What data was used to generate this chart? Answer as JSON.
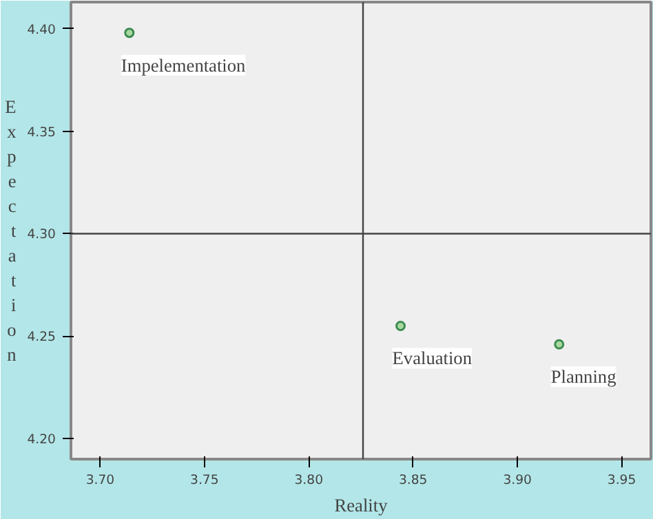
{
  "chart_data": {
    "type": "scatter",
    "xlabel": "Reality",
    "ylabel": "Expectation",
    "x": [
      3.714,
      3.844,
      3.92
    ],
    "series": [
      {
        "color": "#3c8c50",
        "values": [
          4.398,
          4.255,
          4.246
        ]
      }
    ],
    "marker": "circle",
    "grid": false,
    "xlim": [
      3.686,
      3.964
    ],
    "ylim": [
      4.19,
      4.413
    ],
    "xticks": [
      {
        "value": 3.7,
        "label": "3.70"
      },
      {
        "value": 3.75,
        "label": "3.75"
      },
      {
        "value": 3.8,
        "label": "3.80"
      },
      {
        "value": 3.85,
        "label": "3.85"
      },
      {
        "value": 3.9,
        "label": "3.90"
      },
      {
        "value": 3.95,
        "label": "3.95"
      }
    ],
    "yticks": [
      {
        "value": 4.2,
        "label": "4.20"
      },
      {
        "value": 4.25,
        "label": "4.25"
      },
      {
        "value": 4.3,
        "label": "4.30"
      },
      {
        "value": 4.35,
        "label": "4.35"
      },
      {
        "value": 4.4,
        "label": "4.40"
      }
    ],
    "ref_lines": [
      {
        "axis": "x",
        "value": 3.826
      },
      {
        "axis": "y",
        "value": 4.3
      }
    ],
    "annotations": [
      {
        "text": "Impelementation",
        "x": 3.714,
        "y": 4.398
      },
      {
        "text": "Evaluation",
        "x": 3.844,
        "y": 4.255
      },
      {
        "text": "Planning",
        "x": 3.92,
        "y": 4.246
      }
    ]
  }
}
